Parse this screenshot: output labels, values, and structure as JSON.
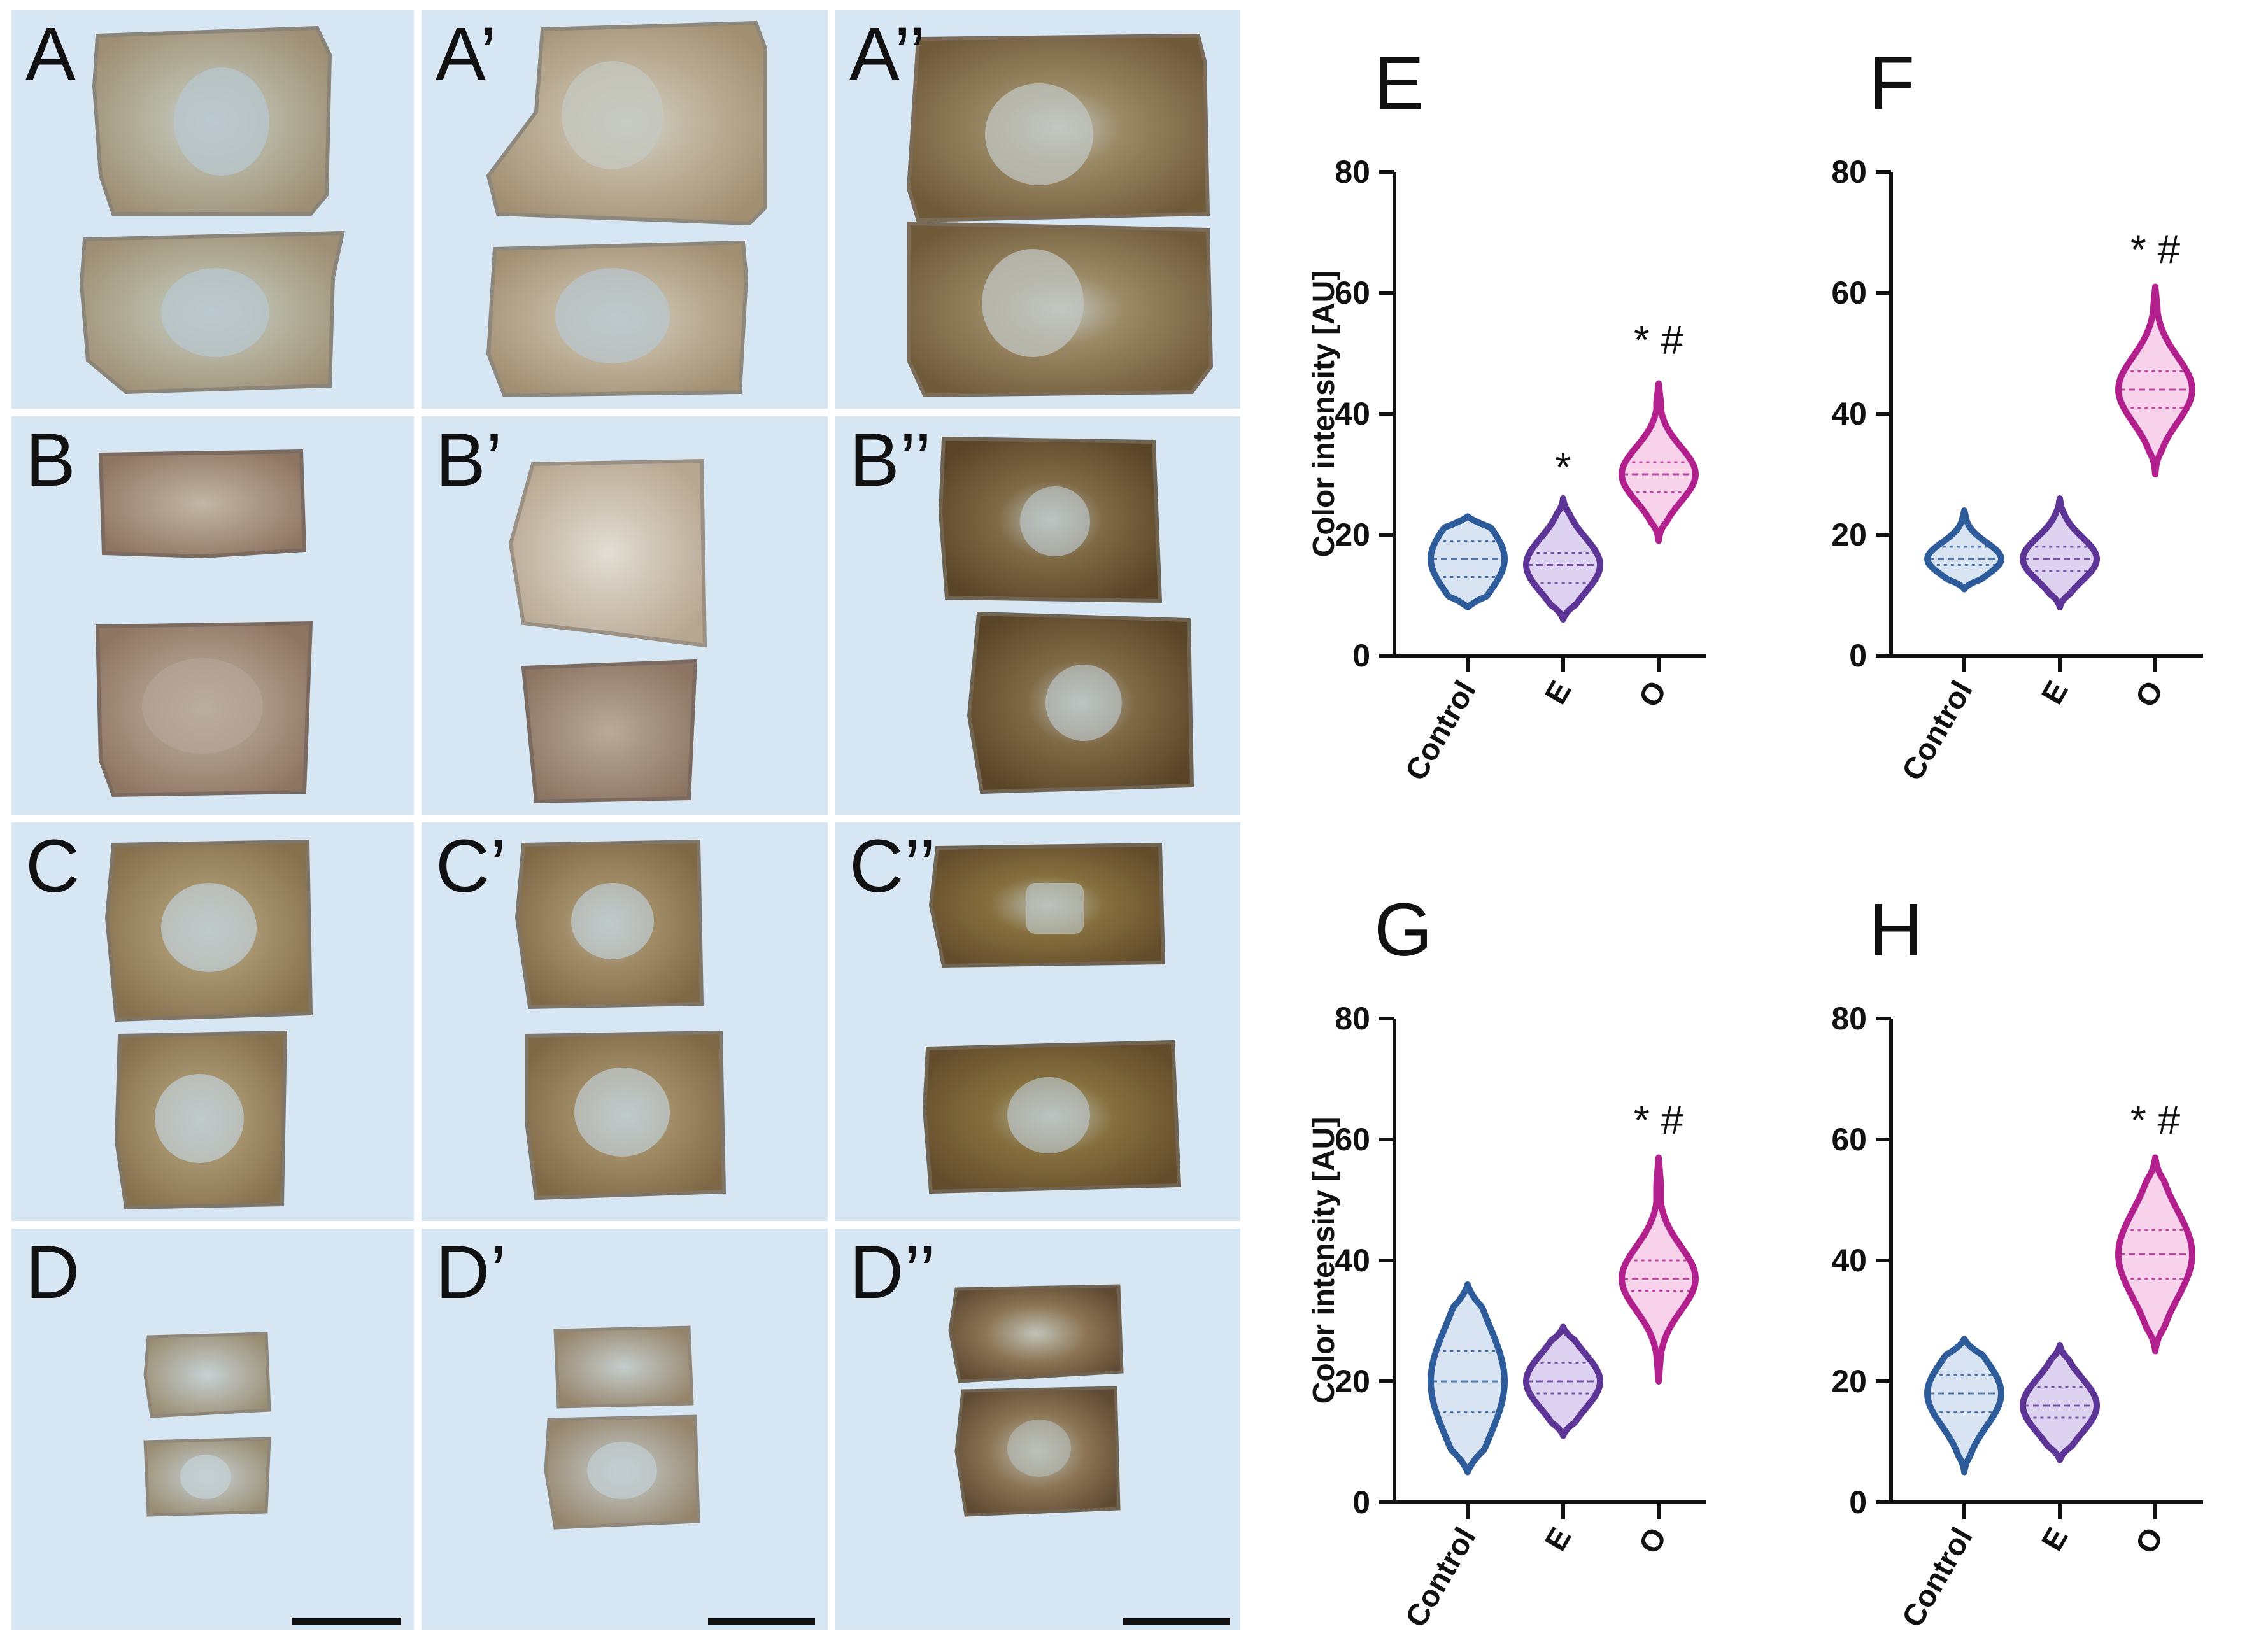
{
  "figure": {
    "panels": [
      {
        "label": "A"
      },
      {
        "label": "A’"
      },
      {
        "label": "A’’"
      },
      {
        "label": "B"
      },
      {
        "label": "B’"
      },
      {
        "label": "B’’"
      },
      {
        "label": "C"
      },
      {
        "label": "C’"
      },
      {
        "label": "C’’"
      },
      {
        "label": "D"
      },
      {
        "label": "D’"
      },
      {
        "label": "D’’"
      }
    ]
  },
  "chart_data": [
    {
      "panel_label": "E",
      "type": "violin",
      "ylabel": "Color intensity [AU]",
      "ylim": [
        0,
        80
      ],
      "yticks": [
        0,
        20,
        40,
        60,
        80
      ],
      "categories": [
        "Control",
        "E",
        "O"
      ],
      "series": [
        {
          "category": "Control",
          "min": 8,
          "max": 23,
          "median": 16,
          "q1": 13,
          "q3": 19,
          "color": "#2e5c9a",
          "fill": "#d9e4f2"
        },
        {
          "category": "E",
          "min": 6,
          "max": 26,
          "median": 15,
          "q1": 12,
          "q3": 17,
          "color": "#5d3596",
          "fill": "#ddd2ef"
        },
        {
          "category": "O",
          "min": 19,
          "max": 45,
          "median": 30,
          "q1": 27,
          "q3": 32,
          "color": "#b2208e",
          "fill": "#f7d2ea"
        }
      ],
      "annotations": [
        {
          "category": "E",
          "text": "*",
          "value": 31
        },
        {
          "category": "O",
          "text": "* #",
          "value": 52
        }
      ]
    },
    {
      "panel_label": "F",
      "type": "violin",
      "ylabel": "",
      "ylim": [
        0,
        80
      ],
      "yticks": [
        0,
        20,
        40,
        60,
        80
      ],
      "categories": [
        "Control",
        "E",
        "O"
      ],
      "series": [
        {
          "category": "Control",
          "min": 11,
          "max": 24,
          "median": 16,
          "q1": 15,
          "q3": 18,
          "color": "#2e5c9a",
          "fill": "#d9e4f2"
        },
        {
          "category": "E",
          "min": 8,
          "max": 26,
          "median": 16,
          "q1": 14,
          "q3": 18,
          "color": "#5d3596",
          "fill": "#ddd2ef"
        },
        {
          "category": "O",
          "min": 30,
          "max": 61,
          "median": 44,
          "q1": 41,
          "q3": 47,
          "color": "#b2208e",
          "fill": "#f7d2ea"
        }
      ],
      "annotations": [
        {
          "category": "O",
          "text": "* #",
          "value": 67
        }
      ]
    },
    {
      "panel_label": "G",
      "type": "violin",
      "ylabel": "Color intensity [AU]",
      "ylim": [
        0,
        80
      ],
      "yticks": [
        0,
        20,
        40,
        60,
        80
      ],
      "categories": [
        "Control",
        "E",
        "O"
      ],
      "series": [
        {
          "category": "Control",
          "min": 5,
          "max": 36,
          "median": 20,
          "q1": 15,
          "q3": 25,
          "color": "#2e5c9a",
          "fill": "#d9e4f2"
        },
        {
          "category": "E",
          "min": 11,
          "max": 29,
          "median": 20,
          "q1": 18,
          "q3": 23,
          "color": "#5d3596",
          "fill": "#ddd2ef"
        },
        {
          "category": "O",
          "min": 20,
          "max": 57,
          "median": 37,
          "q1": 35,
          "q3": 40,
          "color": "#b2208e",
          "fill": "#f7d2ea"
        }
      ],
      "annotations": [
        {
          "category": "O",
          "text": "* #",
          "value": 63
        }
      ]
    },
    {
      "panel_label": "H",
      "type": "violin",
      "ylabel": "",
      "ylim": [
        0,
        80
      ],
      "yticks": [
        0,
        20,
        40,
        60,
        80
      ],
      "categories": [
        "Control",
        "E",
        "O"
      ],
      "series": [
        {
          "category": "Control",
          "min": 5,
          "max": 27,
          "median": 18,
          "q1": 15,
          "q3": 21,
          "color": "#2e5c9a",
          "fill": "#d9e4f2"
        },
        {
          "category": "E",
          "min": 7,
          "max": 26,
          "median": 16,
          "q1": 14,
          "q3": 19,
          "color": "#5d3596",
          "fill": "#ddd2ef"
        },
        {
          "category": "O",
          "min": 25,
          "max": 57,
          "median": 41,
          "q1": 37,
          "q3": 45,
          "color": "#b2208e",
          "fill": "#f7d2ea"
        }
      ],
      "annotations": [
        {
          "category": "O",
          "text": "* #",
          "value": 63
        }
      ]
    }
  ]
}
